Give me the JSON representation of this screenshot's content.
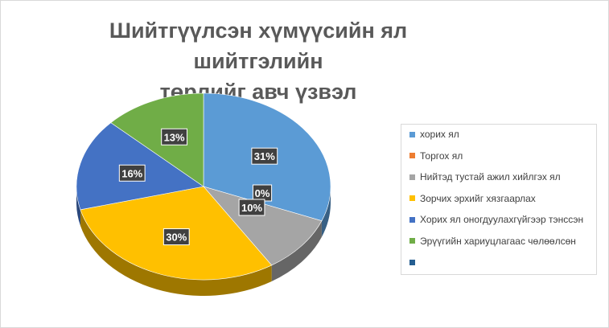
{
  "chart_data": {
    "type": "pie",
    "title_lines": [
      "Шийтгүүлсэн хүмүүсийн ял шийтгэлийн",
      "төрлийг авч үзвэл"
    ],
    "slices": [
      {
        "label": "хорих ял",
        "value": 31,
        "display": "31%",
        "color": "#5b9bd5"
      },
      {
        "label": "Торгох ял",
        "value": 0,
        "display": "0%",
        "color": "#ed7d31"
      },
      {
        "label": "Нийтэд тустай ажил хийлгэх ял",
        "value": 10,
        "display": "10%",
        "color": "#a5a5a5"
      },
      {
        "label": "Зорчих эрхийг хязгаарлах",
        "value": 30,
        "display": "30%",
        "color": "#ffc000"
      },
      {
        "label": "Хорих ял оногдуулахгүйгээр тэнссэн",
        "value": 16,
        "display": "16%",
        "color": "#4472c4"
      },
      {
        "label": "Эрүүгийн хариуцлагаас чөлөөлсөн",
        "value": 13,
        "display": "13%",
        "color": "#70ad47"
      },
      {
        "label": "",
        "value": 0,
        "display": "",
        "color": "#255e91"
      }
    ],
    "legend_position": "right",
    "style": "3d"
  }
}
